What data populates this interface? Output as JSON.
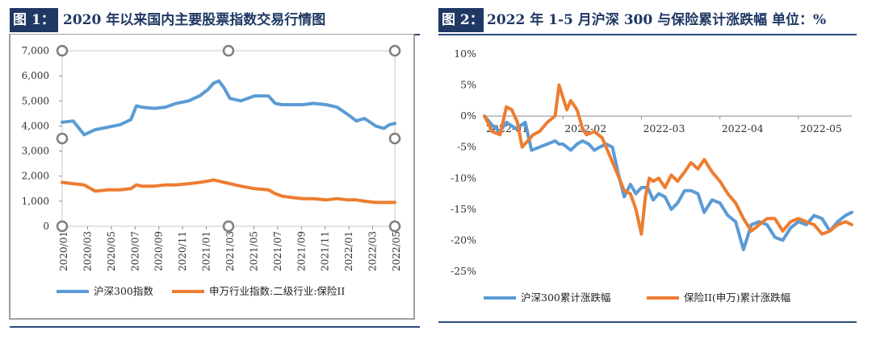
{
  "figure1": {
    "tag": "图 1：",
    "title": "2020 年以来国内主要股票指数交易行情图",
    "colors": {
      "series1": "#5b9bd5",
      "series2": "#ed7d31",
      "title_bg": "#1f3864"
    },
    "chart_data": {
      "type": "line",
      "title": "",
      "xlabel": "",
      "ylabel": "",
      "ylim": [
        0,
        7000
      ],
      "yticks": [
        "0",
        "1,000",
        "2,000",
        "3,000",
        "4,000",
        "5,000",
        "6,000",
        "7,000"
      ],
      "xticks": [
        "2020/01",
        "2020/03",
        "2020/05",
        "2020/07",
        "2020/09",
        "2020/11",
        "2021/01",
        "2021/03",
        "2021/05",
        "2021/07",
        "2021/09",
        "2021/11",
        "2022/01",
        "2022/03",
        "2022/05"
      ],
      "legend_position": "bottom",
      "series": [
        {
          "name": "沪深300指数",
          "x": [
            2020.0,
            2020.08,
            2020.16,
            2020.24,
            2020.33,
            2020.42,
            2020.5,
            2020.54,
            2020.58,
            2020.67,
            2020.75,
            2020.83,
            2020.92,
            2021.0,
            2021.06,
            2021.1,
            2021.14,
            2021.18,
            2021.22,
            2021.3,
            2021.4,
            2021.5,
            2021.55,
            2021.6,
            2021.67,
            2021.75,
            2021.83,
            2021.92,
            2022.0,
            2022.08,
            2022.14,
            2022.2,
            2022.28,
            2022.34,
            2022.38,
            2022.42
          ],
          "values": [
            4150,
            4200,
            3650,
            3850,
            3950,
            4050,
            4250,
            4800,
            4750,
            4700,
            4750,
            4900,
            5000,
            5200,
            5450,
            5700,
            5800,
            5500,
            5100,
            5000,
            5200,
            5200,
            4900,
            4850,
            4850,
            4850,
            4900,
            4850,
            4750,
            4450,
            4200,
            4300,
            4000,
            3900,
            4050,
            4100
          ]
        },
        {
          "name": "申万行业指数:二级行业:保险II",
          "x": [
            2020.0,
            2020.08,
            2020.16,
            2020.24,
            2020.33,
            2020.42,
            2020.5,
            2020.54,
            2020.58,
            2020.67,
            2020.75,
            2020.83,
            2020.92,
            2021.0,
            2021.06,
            2021.1,
            2021.14,
            2021.18,
            2021.22,
            2021.3,
            2021.4,
            2021.5,
            2021.55,
            2021.6,
            2021.67,
            2021.75,
            2021.83,
            2021.92,
            2022.0,
            2022.08,
            2022.14,
            2022.2,
            2022.28,
            2022.34,
            2022.38,
            2022.42
          ],
          "values": [
            1750,
            1700,
            1650,
            1400,
            1450,
            1450,
            1500,
            1650,
            1600,
            1600,
            1650,
            1650,
            1700,
            1750,
            1800,
            1850,
            1800,
            1750,
            1700,
            1600,
            1500,
            1450,
            1300,
            1200,
            1150,
            1100,
            1100,
            1050,
            1100,
            1050,
            1050,
            1000,
            950,
            950,
            950,
            950
          ]
        }
      ]
    }
  },
  "figure2": {
    "tag": "图 2：",
    "title": "2022 年 1-5 月沪深 300 与保险累计涨跌幅 单位：%",
    "colors": {
      "series1": "#5b9bd5",
      "series2": "#ed7d31",
      "title_bg": "#1f3864"
    },
    "chart_data": {
      "type": "line",
      "title": "",
      "xlabel": "",
      "ylabel": "",
      "ylim": [
        -25,
        10
      ],
      "yticks": [
        "-25%",
        "-20%",
        "-15%",
        "-10%",
        "-5%",
        "0%",
        "5%",
        "10%"
      ],
      "xticks": [
        "2022-01",
        "2022-02",
        "2022-03",
        "2022-04",
        "2022-05"
      ],
      "legend_position": "bottom",
      "series": [
        {
          "name": "沪深300累计涨跌幅",
          "x": [
            0.0,
            0.1,
            0.2,
            0.28,
            0.4,
            0.52,
            0.6,
            0.7,
            0.8,
            0.9,
            0.95,
            1.0,
            1.05,
            1.1,
            1.18,
            1.25,
            1.33,
            1.4,
            1.47,
            1.55,
            1.63,
            1.7,
            1.78,
            1.86,
            1.93,
            2.0,
            2.08,
            2.15,
            2.22,
            2.3,
            2.38,
            2.46,
            2.55,
            2.63,
            2.72,
            2.8,
            2.9,
            3.0,
            3.1,
            3.2,
            3.3,
            3.4,
            3.5,
            3.6,
            3.7,
            3.8,
            3.9,
            4.0,
            4.1,
            4.2,
            4.3,
            4.4,
            4.5,
            4.6,
            4.68
          ],
          "values": [
            0.0,
            -1.5,
            -2.5,
            -1.0,
            -2.0,
            -1.0,
            -5.5,
            -5.0,
            -4.5,
            -4.0,
            -4.5,
            -4.5,
            -5.0,
            -5.5,
            -4.5,
            -4.0,
            -4.5,
            -5.5,
            -5.0,
            -4.5,
            -5.0,
            -9.0,
            -13.0,
            -11.0,
            -12.5,
            -11.5,
            -11.5,
            -13.5,
            -12.5,
            -13.0,
            -15.0,
            -14.0,
            -12.0,
            -12.0,
            -12.5,
            -15.5,
            -13.5,
            -14.0,
            -16.0,
            -17.0,
            -21.5,
            -17.5,
            -17.0,
            -17.5,
            -19.5,
            -20.0,
            -18.0,
            -17.0,
            -17.5,
            -16.0,
            -16.5,
            -18.5,
            -17.0,
            -16.0,
            -15.5
          ]
        },
        {
          "name": "保险II(申万)累计涨跌幅",
          "x": [
            0.0,
            0.1,
            0.2,
            0.28,
            0.35,
            0.42,
            0.48,
            0.55,
            0.62,
            0.7,
            0.8,
            0.9,
            0.95,
            1.0,
            1.05,
            1.1,
            1.18,
            1.25,
            1.3,
            1.4,
            1.5,
            1.6,
            1.7,
            1.78,
            1.86,
            1.93,
            2.0,
            2.05,
            2.1,
            2.15,
            2.22,
            2.3,
            2.38,
            2.46,
            2.55,
            2.63,
            2.72,
            2.8,
            2.9,
            3.0,
            3.1,
            3.2,
            3.3,
            3.4,
            3.5,
            3.6,
            3.7,
            3.8,
            3.9,
            4.0,
            4.1,
            4.2,
            4.3,
            4.4,
            4.5,
            4.6,
            4.68
          ],
          "values": [
            0.0,
            -2.5,
            -3.0,
            1.5,
            1.0,
            -1.0,
            -5.0,
            -4.0,
            -3.0,
            -2.5,
            -1.0,
            0.0,
            5.0,
            3.0,
            1.0,
            2.5,
            1.0,
            -2.0,
            -3.0,
            -2.5,
            -3.5,
            -6.5,
            -9.5,
            -12.0,
            -12.5,
            -15.0,
            -19.0,
            -13.0,
            -10.0,
            -10.5,
            -10.0,
            -11.5,
            -9.5,
            -10.5,
            -9.0,
            -7.5,
            -8.5,
            -7.0,
            -9.0,
            -10.5,
            -12.5,
            -14.0,
            -16.5,
            -18.5,
            -17.5,
            -16.5,
            -16.5,
            -18.5,
            -17.0,
            -16.5,
            -17.0,
            -17.5,
            -19.0,
            -18.5,
            -17.5,
            -17.0,
            -17.5
          ]
        }
      ]
    }
  }
}
